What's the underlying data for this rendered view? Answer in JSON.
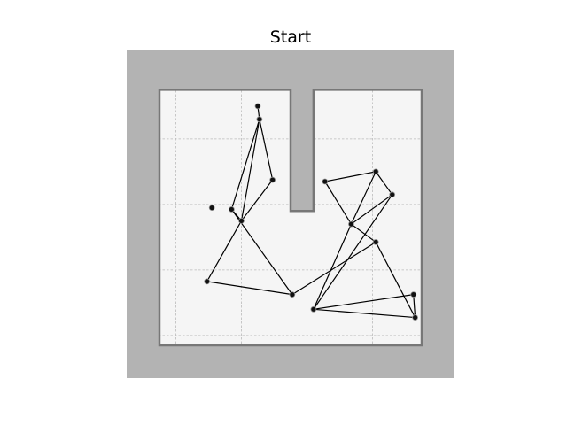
{
  "chart_data": {
    "type": "scatter",
    "title": "Start",
    "xlabel": "",
    "ylabel": "",
    "xlim": [
      -2.5,
      7.5
    ],
    "ylim": [
      -2.5,
      7.5
    ],
    "grid": true,
    "legend": "none",
    "colors": {
      "outer_fill": "#b3b3b3",
      "room_fill": "#f5f5f5",
      "wall_stroke": "#777777",
      "grid": "#bbbbbb",
      "edge": "#000000",
      "node": "#111111"
    },
    "room_polygon": [
      [
        -1.5,
        -1.5
      ],
      [
        6.5,
        -1.5
      ],
      [
        6.5,
        6.3
      ],
      [
        3.2,
        6.3
      ],
      [
        3.2,
        2.6
      ],
      [
        2.5,
        2.6
      ],
      [
        2.5,
        6.3
      ],
      [
        -1.5,
        6.3
      ]
    ],
    "nodes": [
      {
        "id": 0,
        "x": 1.5,
        "y": 5.8
      },
      {
        "id": 1,
        "x": 1.55,
        "y": 5.4
      },
      {
        "id": 2,
        "x": 1.95,
        "y": 3.55
      },
      {
        "id": 3,
        "x": 0.1,
        "y": 2.7
      },
      {
        "id": 4,
        "x": 0.7,
        "y": 2.65
      },
      {
        "id": 5,
        "x": 1.0,
        "y": 2.3
      },
      {
        "id": 6,
        "x": -0.05,
        "y": 0.45
      },
      {
        "id": 7,
        "x": 2.55,
        "y": 0.05
      },
      {
        "id": 8,
        "x": 3.2,
        "y": -0.4
      },
      {
        "id": 9,
        "x": 3.55,
        "y": 3.5
      },
      {
        "id": 10,
        "x": 5.1,
        "y": 3.8
      },
      {
        "id": 11,
        "x": 5.6,
        "y": 3.1
      },
      {
        "id": 12,
        "x": 4.35,
        "y": 2.2
      },
      {
        "id": 13,
        "x": 5.1,
        "y": 1.65
      },
      {
        "id": 14,
        "x": 6.25,
        "y": 0.05
      },
      {
        "id": 15,
        "x": 6.3,
        "y": -0.65
      }
    ],
    "edges": [
      [
        0,
        1
      ],
      [
        1,
        2
      ],
      [
        1,
        4
      ],
      [
        1,
        5
      ],
      [
        2,
        5
      ],
      [
        4,
        5
      ],
      [
        4,
        7
      ],
      [
        5,
        6
      ],
      [
        6,
        7
      ],
      [
        7,
        13
      ],
      [
        9,
        10
      ],
      [
        9,
        12
      ],
      [
        10,
        12
      ],
      [
        10,
        11
      ],
      [
        11,
        12
      ],
      [
        11,
        8
      ],
      [
        12,
        8
      ],
      [
        12,
        13
      ],
      [
        13,
        15
      ],
      [
        8,
        14
      ],
      [
        8,
        15
      ],
      [
        14,
        15
      ]
    ]
  }
}
